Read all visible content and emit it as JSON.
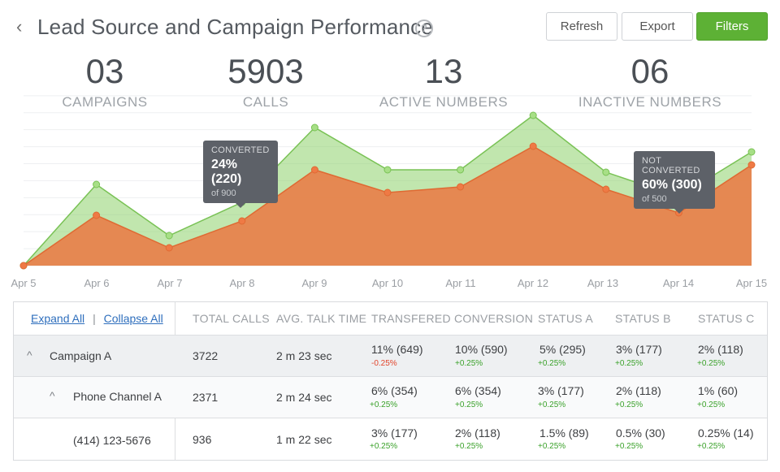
{
  "header": {
    "back_icon": "chevron-left-icon",
    "title": "Lead Source and Campaign Performance",
    "help_icon": "question-circle-icon",
    "help_glyph": "?",
    "refresh_label": "Refresh",
    "export_label": "Export",
    "filters_label": "Filters"
  },
  "stats": [
    {
      "value": "03",
      "label": "CAMPAIGNS"
    },
    {
      "value": "5903",
      "label": "CALLS"
    },
    {
      "value": "13",
      "label": "ACTIVE NUMBERS"
    },
    {
      "value": "06",
      "label": "INACTIVE NUMBERS"
    }
  ],
  "chart_data": {
    "type": "area",
    "categories": [
      "Apr 5",
      "Apr 6",
      "Apr 7",
      "Apr 8",
      "Apr 9",
      "Apr 10",
      "Apr 11",
      "Apr 12",
      "Apr 13",
      "Apr 14",
      "Apr 15"
    ],
    "series": [
      {
        "values": [
          0,
          100,
          37,
          78,
          170,
          118,
          118,
          185,
          115,
          85,
          140
        ],
        "color": "#8ed26b"
      },
      {
        "values": [
          0,
          62,
          22,
          55,
          118,
          90,
          97,
          147,
          94,
          65,
          124
        ],
        "color": "#e8804a"
      }
    ],
    "ylim": [
      0,
      200
    ],
    "grid": true
  },
  "tooltips": {
    "converted": {
      "label": "CONVERTED",
      "value": "24% (220)",
      "sub": "of 900"
    },
    "not_converted": {
      "label": "NOT CONVERTED",
      "value": "60% (300)",
      "sub": "of 500"
    }
  },
  "table": {
    "expand_all": "Expand All",
    "separator": "|",
    "collapse_all": "Collapse All",
    "columns": [
      "TOTAL CALLS",
      "AVG. TALK TIME",
      "TRANSFERED",
      "CONVERSION",
      "STATUS A",
      "STATUS B",
      "STATUS C"
    ],
    "rows": [
      {
        "name": "Campaign A",
        "expander": "^",
        "total_calls": "3722",
        "avg_talk": "2 m 23 sec",
        "metrics": [
          {
            "value": "11% (649)",
            "delta": "-0.25%",
            "trend": "down"
          },
          {
            "value": "10% (590)",
            "delta": "+0.25%",
            "trend": "up"
          },
          {
            "value": "5% (295)",
            "delta": "+0.25%",
            "trend": "up"
          },
          {
            "value": "3% (177)",
            "delta": "+0.25%",
            "trend": "up"
          },
          {
            "value": "2% (118)",
            "delta": "+0.25%",
            "trend": "up"
          }
        ]
      },
      {
        "name": "Phone Channel A",
        "expander": "^",
        "total_calls": "2371",
        "avg_talk": "2 m 24 sec",
        "metrics": [
          {
            "value": "6% (354)",
            "delta": "+0.25%",
            "trend": "up"
          },
          {
            "value": "6% (354)",
            "delta": "+0.25%",
            "trend": "up"
          },
          {
            "value": "3% (177)",
            "delta": "+0.25%",
            "trend": "up"
          },
          {
            "value": "2% (118)",
            "delta": "+0.25%",
            "trend": "up"
          },
          {
            "value": "1% (60)",
            "delta": "+0.25%",
            "trend": "up"
          }
        ]
      },
      {
        "name": "(414) 123-5676",
        "total_calls": "936",
        "avg_talk": "1 m 22 sec",
        "metrics": [
          {
            "value": "3% (177)",
            "delta": "+0.25%",
            "trend": "up"
          },
          {
            "value": "2% (118)",
            "delta": "+0.25%",
            "trend": "up"
          },
          {
            "value": "1.5% (89)",
            "delta": "+0.25%",
            "trend": "up"
          },
          {
            "value": "0.5% (30)",
            "delta": "+0.25%",
            "trend": "up"
          },
          {
            "value": "0.25% (14)",
            "delta": "+0.25%",
            "trend": "up"
          }
        ]
      }
    ]
  }
}
